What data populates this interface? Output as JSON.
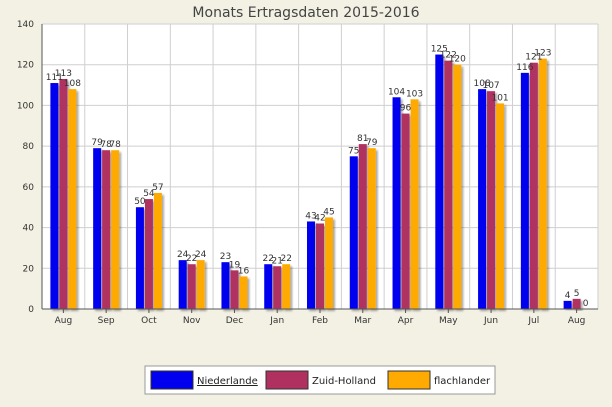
{
  "chart_data": {
    "type": "bar",
    "title": "Monats Ertragsdaten 2015-2016",
    "xlabel": "",
    "ylabel": "",
    "ylim": [
      0,
      140
    ],
    "yticks": [
      0,
      20,
      40,
      60,
      80,
      100,
      120,
      140
    ],
    "categories": [
      "Aug",
      "Sep",
      "Oct",
      "Nov",
      "Dec",
      "Jan",
      "Feb",
      "Mar",
      "Apr",
      "May",
      "Jun",
      "Jul",
      "Aug"
    ],
    "grid": true,
    "legend_placement": "bottom-center",
    "series": [
      {
        "name": "Niederlande",
        "color": "#0000ee",
        "values": [
          111,
          79,
          50,
          24,
          23,
          22,
          43,
          75,
          104,
          125,
          108,
          116,
          4
        ]
      },
      {
        "name": "Zuid-Holland",
        "color": "#b03060",
        "values": [
          113,
          78,
          54,
          22,
          19,
          21,
          42,
          81,
          96,
          122,
          107,
          121,
          5
        ]
      },
      {
        "name": "flachlander",
        "color": "#ffaa00",
        "values": [
          108,
          78,
          57,
          24,
          16,
          22,
          45,
          79,
          103,
          120,
          101,
          123,
          0
        ]
      }
    ]
  }
}
